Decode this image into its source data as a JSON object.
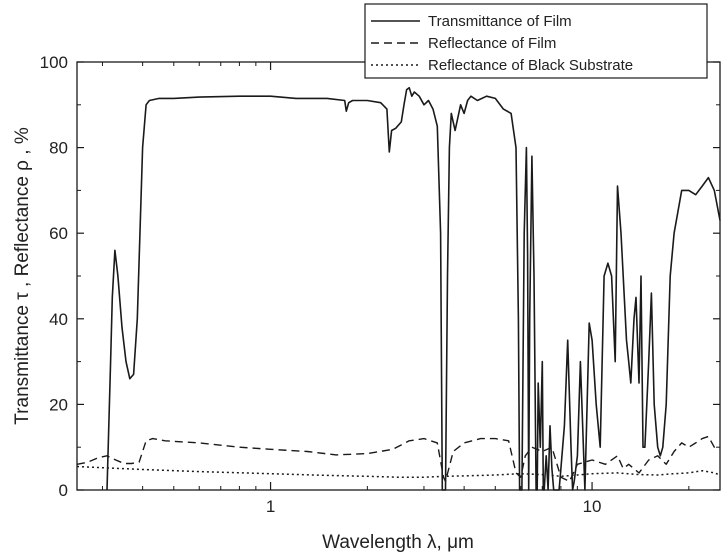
{
  "chart_data": {
    "type": "line",
    "xscale": "log",
    "xlim": [
      0.25,
      25
    ],
    "ylim": [
      0,
      100
    ],
    "xlabel": "Wavelength λ, μm",
    "ylabel": "Transmittance τ , Reflectance ρ , %",
    "x_ticks": [
      1,
      10
    ],
    "x_tick_labels": [
      "1",
      "10"
    ],
    "y_ticks": [
      0,
      20,
      40,
      60,
      80,
      100
    ],
    "y_tick_labels": [
      "0",
      "20",
      "40",
      "60",
      "80",
      "100"
    ],
    "grid": false,
    "legend_position": "top-right (above plot)",
    "series": [
      {
        "name": "Transmittance of Film",
        "style": "solid",
        "color": "#1a1a1a",
        "x": [
          0.31,
          0.318,
          0.322,
          0.328,
          0.335,
          0.345,
          0.355,
          0.365,
          0.375,
          0.385,
          0.4,
          0.41,
          0.42,
          0.45,
          0.5,
          0.6,
          0.8,
          1.0,
          1.2,
          1.5,
          1.7,
          1.72,
          1.75,
          1.8,
          2.0,
          2.2,
          2.3,
          2.34,
          2.38,
          2.45,
          2.55,
          2.6,
          2.65,
          2.7,
          2.75,
          2.8,
          2.9,
          3.0,
          3.1,
          3.2,
          3.3,
          3.38,
          3.42,
          3.45,
          3.5,
          3.55,
          3.6,
          3.65,
          3.75,
          3.9,
          4.0,
          4.1,
          4.2,
          4.4,
          4.7,
          5.0,
          5.3,
          5.6,
          5.8,
          5.9,
          5.95,
          6.0,
          6.05,
          6.15,
          6.25,
          6.3,
          6.35,
          6.4,
          6.5,
          6.6,
          6.7,
          6.75,
          6.8,
          6.9,
          7.0,
          7.05,
          7.1,
          7.2,
          7.3,
          7.4,
          7.5,
          7.6,
          7.7,
          7.8,
          7.9,
          8.0,
          8.2,
          8.4,
          8.6,
          8.7,
          8.8,
          9.0,
          9.2,
          9.5,
          9.8,
          10.0,
          10.3,
          10.6,
          10.9,
          11.2,
          11.5,
          11.8,
          12.0,
          12.3,
          12.6,
          12.8,
          13.0,
          13.2,
          13.5,
          13.7,
          14.0,
          14.2,
          14.4,
          14.6,
          15.0,
          15.3,
          15.6,
          16.0,
          16.3,
          16.6,
          17.0,
          17.5,
          18.0,
          19.0,
          20.0,
          21.0,
          22.0,
          23.0,
          24.0,
          25.0
        ],
        "y": [
          0,
          30,
          45,
          56,
          50,
          38,
          30,
          26,
          27,
          40,
          80,
          90,
          91,
          91.5,
          91.5,
          91.8,
          92,
          92,
          91.5,
          91.5,
          91,
          88.5,
          90.5,
          91,
          91,
          90.5,
          89,
          79,
          84,
          84.5,
          86,
          90,
          93.5,
          94,
          92,
          93,
          92,
          90,
          91,
          89,
          85,
          60,
          0,
          0,
          0,
          50,
          80,
          88,
          84,
          90,
          88,
          91,
          92,
          91,
          92,
          91.5,
          89,
          88,
          80,
          40,
          0,
          0,
          0,
          60,
          80,
          55,
          0,
          40,
          78,
          50,
          0,
          0,
          25,
          10,
          30,
          0,
          0,
          8,
          0,
          15,
          5,
          0,
          0,
          0,
          0,
          5,
          15,
          35,
          10,
          0,
          2,
          8,
          30,
          0,
          39,
          35,
          20,
          10,
          50,
          53,
          50,
          30,
          71,
          60,
          45,
          35,
          30,
          25,
          40,
          45,
          25,
          50,
          10,
          10,
          30,
          46,
          20,
          10,
          8,
          10,
          20,
          50,
          60,
          70,
          70,
          69,
          71,
          73,
          70,
          63
        ]
      },
      {
        "name": "Reflectance of Film",
        "style": "dashed",
        "color": "#1a1a1a",
        "x": [
          0.25,
          0.27,
          0.29,
          0.31,
          0.33,
          0.35,
          0.37,
          0.39,
          0.41,
          0.43,
          0.47,
          0.6,
          0.8,
          1.0,
          1.3,
          1.6,
          2.0,
          2.4,
          2.7,
          3.0,
          3.3,
          3.45,
          3.5,
          3.7,
          4.0,
          4.5,
          5.0,
          5.5,
          5.8,
          6.0,
          6.2,
          6.5,
          7.0,
          7.5,
          8.0,
          8.5,
          9.0,
          10.0,
          11.0,
          12.0,
          12.5,
          13.0,
          14.0,
          15.0,
          16.0,
          17.0,
          18.0,
          19.0,
          20.0,
          21.0,
          22.0,
          23.0,
          24.0,
          25.0
        ],
        "y": [
          6,
          6.5,
          7.5,
          8,
          7,
          6.2,
          6.2,
          6.5,
          11.5,
          12,
          11.5,
          11,
          10,
          9.5,
          9,
          8.2,
          8.5,
          9.5,
          11.5,
          12,
          11,
          3,
          2,
          9,
          11,
          12,
          12,
          11.5,
          4,
          3,
          8,
          10,
          9,
          10,
          3,
          2,
          6,
          7,
          6,
          8,
          5,
          6,
          4,
          7,
          8,
          6,
          9,
          11,
          10,
          11,
          12,
          12.5,
          10,
          9.5
        ]
      },
      {
        "name": "Reflectance of Black Substrate",
        "style": "dotted",
        "color": "#1a1a1a",
        "x": [
          0.25,
          0.3,
          0.4,
          0.6,
          1.0,
          1.5,
          2.0,
          2.5,
          3.0,
          3.5,
          4.0,
          5.0,
          6.0,
          7.0,
          8.0,
          9.0,
          10.0,
          12.0,
          14.0,
          16.0,
          18.0,
          20.0,
          22.0,
          24.0,
          25.0
        ],
        "y": [
          5.5,
          5.2,
          4.8,
          4.3,
          3.8,
          3.4,
          3.2,
          3.0,
          3.0,
          3.2,
          3.3,
          3.5,
          3.8,
          3.6,
          3.2,
          3.5,
          3.8,
          4.0,
          3.6,
          3.5,
          3.8,
          4.0,
          4.5,
          4.0,
          3.5
        ]
      }
    ]
  }
}
